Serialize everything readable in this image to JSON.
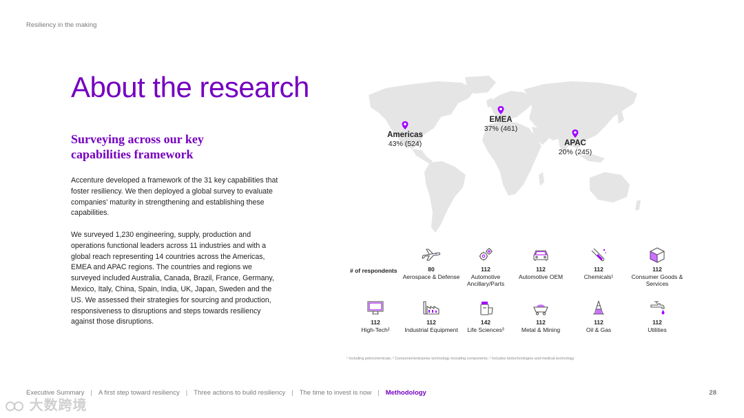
{
  "header": {
    "kicker": "Resiliency in the making"
  },
  "title": "About the research",
  "subtitle": "Surveying across our key capabilities framework",
  "paragraphs": [
    "Accenture developed a framework of the 31 key capabilities that foster resiliency. We then deployed a global survey to evaluate companies' maturity in strengthening and establishing these capabilities.",
    "We surveyed 1,230 engineering, supply, production and operations functional leaders across 11 industries and with a global reach representing 14 countries across the Americas, EMEA and APAC regions. The countries and regions we surveyed included Australia, Canada, Brazil, France, Germany, Mexico, Italy, China, Spain, India, UK, Japan, Sweden and the US. We assessed their strategies for sourcing and production, responsiveness to disruptions and steps towards resiliency against those disruptions."
  ],
  "regions": [
    {
      "name": "Americas",
      "value": "43% (524)"
    },
    {
      "name": "EMEA",
      "value": "37% (461)"
    },
    {
      "name": "APAC",
      "value": "20% (245)"
    }
  ],
  "respondents_label": "# of respondents",
  "industries": [
    {
      "count": "80",
      "name": "Aerospace & Defense",
      "icon": "airplane-icon"
    },
    {
      "count": "112",
      "name": "Automotive Ancillary/Parts",
      "icon": "gears-icon"
    },
    {
      "count": "112",
      "name": "Automotive OEM",
      "icon": "car-icon"
    },
    {
      "count": "112",
      "name": "Chemicals¹",
      "icon": "test-tube-icon"
    },
    {
      "count": "112",
      "name": "Consumer Goods & Services",
      "icon": "box-icon"
    },
    {
      "count": "112",
      "name": "High-Tech²",
      "icon": "monitor-icon"
    },
    {
      "count": "112",
      "name": "Industrial Equipment",
      "icon": "factory-icon"
    },
    {
      "count": "142",
      "name": "Life Sciences³",
      "icon": "pill-bottle-icon"
    },
    {
      "count": "112",
      "name": "Metal & Mining",
      "icon": "mine-cart-icon"
    },
    {
      "count": "112",
      "name": "Oil & Gas",
      "icon": "oil-rig-icon"
    },
    {
      "count": "112",
      "name": "Utilities",
      "icon": "water-tap-icon"
    }
  ],
  "footnote": "¹ Including petrochemicals; ² Consumer/enterprise technology including components; ³ Includes biotechnologies and medical technology",
  "footer": {
    "items": [
      "Executive Summary",
      "A first step toward resiliency",
      "Three actions to build resiliency",
      "The time to invest is now",
      "Methodology"
    ],
    "active_index": 4,
    "page_number": "28"
  },
  "watermark": "大数跨境",
  "colors": {
    "accent": "#7500c0",
    "map": "#e5e5e5"
  }
}
